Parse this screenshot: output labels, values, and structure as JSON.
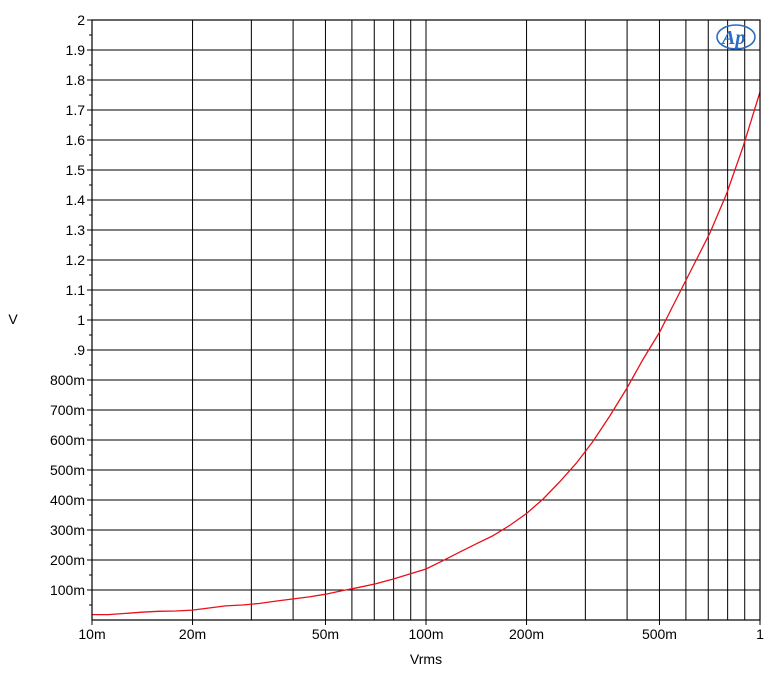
{
  "chart_data": {
    "type": "line",
    "xlabel": "Vrms",
    "ylabel": "V",
    "x_scale": "log",
    "xlim": [
      0.01,
      1
    ],
    "ylim": [
      0,
      2
    ],
    "grid": true,
    "x_ticks": [
      {
        "value": 0.01,
        "label": "10m"
      },
      {
        "value": 0.02,
        "label": "20m"
      },
      {
        "value": 0.05,
        "label": "50m"
      },
      {
        "value": 0.1,
        "label": "100m"
      },
      {
        "value": 0.2,
        "label": "200m"
      },
      {
        "value": 0.5,
        "label": "500m"
      },
      {
        "value": 1,
        "label": "1"
      }
    ],
    "x_minor_grid": [
      0.03,
      0.04,
      0.06,
      0.07,
      0.08,
      0.09,
      0.3,
      0.4,
      0.6,
      0.7,
      0.8,
      0.9
    ],
    "y_ticks": [
      {
        "value": 0.1,
        "label": "100m"
      },
      {
        "value": 0.2,
        "label": "200m"
      },
      {
        "value": 0.3,
        "label": "300m"
      },
      {
        "value": 0.4,
        "label": "400m"
      },
      {
        "value": 0.5,
        "label": "500m"
      },
      {
        "value": 0.6,
        "label": "600m"
      },
      {
        "value": 0.7,
        "label": "700m"
      },
      {
        "value": 0.8,
        "label": "800m"
      },
      {
        "value": 0.9,
        "label": ".9"
      },
      {
        "value": 1.0,
        "label": "1"
      },
      {
        "value": 1.1,
        "label": "1.1"
      },
      {
        "value": 1.2,
        "label": "1.2"
      },
      {
        "value": 1.3,
        "label": "1.3"
      },
      {
        "value": 1.4,
        "label": "1.4"
      },
      {
        "value": 1.5,
        "label": "1.5"
      },
      {
        "value": 1.6,
        "label": "1.6"
      },
      {
        "value": 1.7,
        "label": "1.7"
      },
      {
        "value": 1.8,
        "label": "1.8"
      },
      {
        "value": 1.9,
        "label": "1.9"
      },
      {
        "value": 2.0,
        "label": "2"
      }
    ],
    "series": [
      {
        "color": "#e8101a",
        "x": [
          0.01,
          0.0112,
          0.0126,
          0.0141,
          0.0158,
          0.0178,
          0.02,
          0.0224,
          0.0251,
          0.0282,
          0.0316,
          0.0355,
          0.0398,
          0.0447,
          0.0501,
          0.0562,
          0.0631,
          0.0708,
          0.0794,
          0.0891,
          0.1,
          0.112,
          0.126,
          0.141,
          0.158,
          0.178,
          0.2,
          0.224,
          0.251,
          0.282,
          0.316,
          0.355,
          0.398,
          0.447,
          0.501,
          0.562,
          0.631,
          0.708,
          0.794,
          0.891,
          1.0
        ],
        "y": [
          0.018,
          0.018,
          0.022,
          0.026,
          0.029,
          0.03,
          0.033,
          0.04,
          0.047,
          0.05,
          0.055,
          0.063,
          0.07,
          0.077,
          0.086,
          0.098,
          0.109,
          0.121,
          0.136,
          0.153,
          0.17,
          0.197,
          0.226,
          0.253,
          0.28,
          0.315,
          0.355,
          0.403,
          0.46,
          0.523,
          0.595,
          0.68,
          0.77,
          0.87,
          0.96,
          1.07,
          1.18,
          1.29,
          1.42,
          1.58,
          1.76
        ]
      }
    ]
  },
  "logo": {
    "text": "AP"
  }
}
